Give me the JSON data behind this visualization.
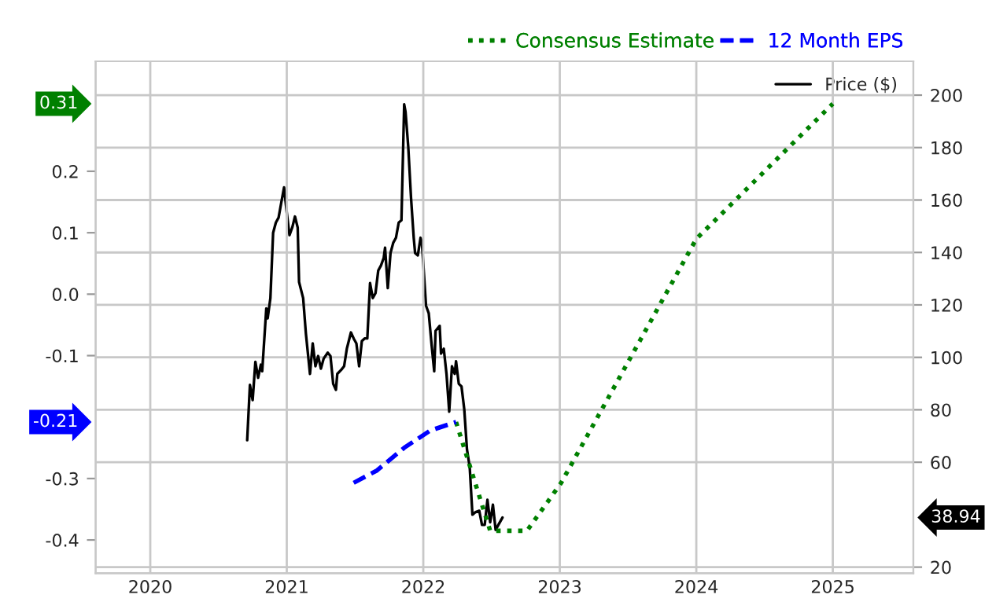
{
  "chart_data": {
    "type": "line",
    "xlim": [
      2019.6,
      2025.59
    ],
    "xticks": [
      2020,
      2021,
      2022,
      2023,
      2024,
      2025
    ],
    "ylim": [
      -0.454,
      0.379
    ],
    "yticks": [
      {
        "value": 0.2,
        "label": "0.2"
      },
      {
        "value": 0.1,
        "label": "0.1"
      },
      {
        "value": 0,
        "label": "0.0"
      },
      {
        "value": -0.1,
        "label": "-0.1"
      },
      {
        "value": -0.3,
        "label": "-0.3"
      },
      {
        "value": -0.4,
        "label": "-0.4"
      }
    ],
    "y2lim": [
      17.7,
      212.9
    ],
    "y2ticks": [
      20,
      60,
      80,
      100,
      120,
      140,
      160,
      180,
      200
    ],
    "grid": true,
    "legend": "top right",
    "series": [
      {
        "name": "Consensus Estimate",
        "color": "#008000",
        "line_style": "dotted",
        "x": [
          2022.24,
          2022.49,
          2022.76,
          2023.01,
          2024.0,
          2025.0
        ],
        "values": [
          -0.208,
          -0.385,
          -0.385,
          -0.307,
          0.09,
          0.31
        ]
      },
      {
        "name": "12 Month EPS",
        "color": "#0000ff",
        "line_style": "dashed",
        "x": [
          2021.49,
          2021.66,
          2021.86,
          2022.05,
          2022.24
        ],
        "values": [
          -0.307,
          -0.287,
          -0.25,
          -0.222,
          -0.208
        ]
      },
      {
        "name": "Price ($)",
        "color": "#000000",
        "line_style": "solid",
        "axis": "y2",
        "x": [
          2020.71,
          2020.73,
          2020.75,
          2020.77,
          2020.79,
          2020.81,
          2020.82,
          2020.85,
          2020.86,
          2020.88,
          2020.9,
          2020.92,
          2020.94,
          2020.96,
          2020.98,
          2021.0,
          2021.02,
          2021.04,
          2021.06,
          2021.08,
          2021.09,
          2021.12,
          2021.14,
          2021.17,
          2021.19,
          2021.21,
          2021.23,
          2021.25,
          2021.27,
          2021.3,
          2021.32,
          2021.34,
          2021.36,
          2021.37,
          2021.4,
          2021.42,
          2021.44,
          2021.47,
          2021.49,
          2021.51,
          2021.53,
          2021.55,
          2021.57,
          2021.59,
          2021.61,
          2021.63,
          2021.65,
          2021.67,
          2021.69,
          2021.71,
          2021.72,
          2021.74,
          2021.76,
          2021.78,
          2021.8,
          2021.82,
          2021.84,
          2021.86,
          2021.87,
          2021.89,
          2021.91,
          2021.93,
          2021.94,
          2021.96,
          2021.98,
          2021.99,
          2022.02,
          2022.04,
          2022.06,
          2022.08,
          2022.09,
          2022.12,
          2022.13,
          2022.15,
          2022.17,
          2022.19,
          2022.21,
          2022.23,
          2022.24,
          2022.26,
          2022.28,
          2022.3,
          2022.32,
          2022.34,
          2022.36,
          2022.38,
          2022.41,
          2022.43,
          2022.45,
          2022.47,
          2022.49,
          2022.51,
          2022.53,
          2022.55,
          2022.58
        ],
        "values": [
          68.4,
          89.5,
          83.7,
          98.3,
          92.2,
          97.2,
          94.7,
          118.7,
          114.9,
          122.6,
          147.5,
          151.4,
          153.3,
          159.1,
          164.8,
          155.2,
          146.6,
          149.5,
          153.7,
          149.5,
          128.7,
          122.6,
          109.1,
          93.7,
          105.3,
          96.6,
          100.5,
          95.7,
          99.5,
          101.8,
          100.5,
          89.9,
          87.6,
          93.7,
          95.3,
          96.6,
          103.3,
          109.5,
          107.2,
          105.3,
          96.6,
          106.2,
          107.2,
          107.2,
          128.3,
          122.6,
          124.5,
          133.1,
          135.0,
          137.9,
          141.8,
          126.4,
          139.8,
          143.7,
          145.6,
          151.4,
          152.3,
          196.5,
          193.6,
          180.2,
          161.0,
          145.6,
          139.8,
          138.9,
          145.6,
          143.7,
          119.7,
          116.8,
          105.3,
          94.7,
          110.1,
          112.0,
          101.4,
          103.3,
          93.7,
          79.3,
          96.6,
          93.7,
          98.5,
          89.9,
          88.9,
          80.3,
          64.9,
          58.2,
          40.0,
          40.9,
          41.5,
          36.1,
          36.1,
          45.7,
          37.1,
          43.8,
          34.2,
          36.1,
          38.9
        ]
      }
    ],
    "annotations": [
      "0.31",
      "-0.21",
      "38.94"
    ]
  }
}
